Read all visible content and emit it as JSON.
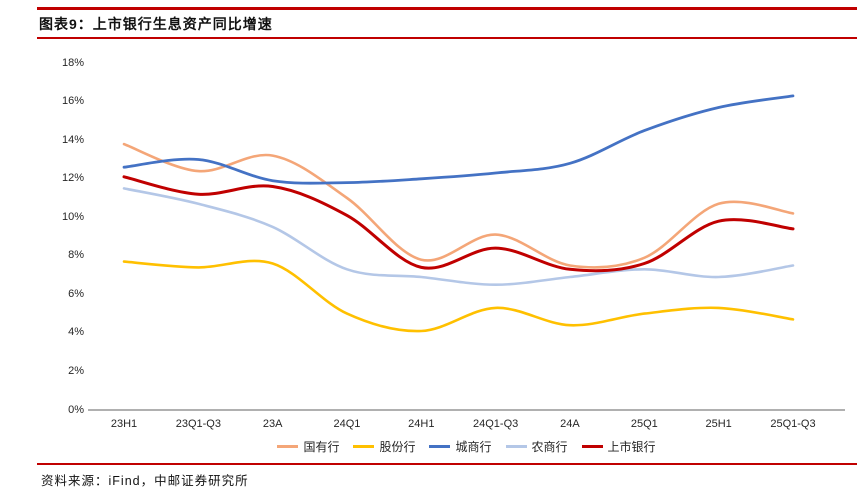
{
  "header": {
    "title": "图表9：上市银行生息资产同比增速"
  },
  "footer": {
    "source": "资料来源：iFind，中邮证券研究所"
  },
  "colors": {
    "rule": "#C00000",
    "axis": "#808080",
    "text": "#262626"
  },
  "chart_data": {
    "type": "line",
    "title": "上市银行生息资产同比增速",
    "categories": [
      "23H1",
      "23Q1-Q3",
      "23A",
      "24Q1",
      "24H1",
      "24Q1-Q3",
      "24A",
      "25Q1",
      "25H1",
      "25Q1-Q3"
    ],
    "series": [
      {
        "name": "国有行",
        "color": "#F4A678",
        "width": 2.6,
        "values": [
          13.8,
          12.4,
          13.2,
          11.0,
          7.8,
          9.1,
          7.5,
          7.9,
          10.7,
          10.2
        ]
      },
      {
        "name": "股份行",
        "color": "#FFC000",
        "width": 2.6,
        "values": [
          7.7,
          7.4,
          7.6,
          5.0,
          4.1,
          5.3,
          4.4,
          5.0,
          5.3,
          4.7
        ]
      },
      {
        "name": "城商行",
        "color": "#4472C4",
        "width": 2.8,
        "values": [
          12.6,
          13.0,
          11.9,
          11.8,
          12.0,
          12.3,
          12.8,
          14.5,
          15.7,
          16.3
        ]
      },
      {
        "name": "农商行",
        "color": "#B4C7E7",
        "width": 2.6,
        "values": [
          11.5,
          10.7,
          9.5,
          7.3,
          6.9,
          6.5,
          6.9,
          7.3,
          6.9,
          7.5
        ]
      },
      {
        "name": "上市银行",
        "color": "#C00000",
        "width": 3.0,
        "values": [
          12.1,
          11.2,
          11.6,
          10.1,
          7.4,
          8.4,
          7.3,
          7.6,
          9.8,
          9.4
        ]
      }
    ],
    "ylim": [
      0,
      18
    ],
    "ytick_step": 2,
    "ytick_suffix": "%",
    "grid": false,
    "smooth": true,
    "legend_position": "bottom"
  }
}
